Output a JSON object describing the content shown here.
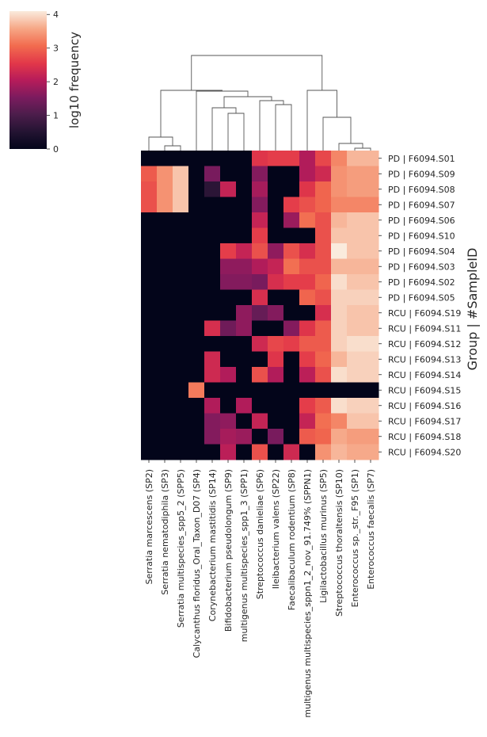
{
  "chart_data": {
    "type": "heatmap",
    "title": "",
    "xlabel": "",
    "ylabel": "Group | #SampleID",
    "colorbar": {
      "label": "log10 frequency",
      "ticks": [
        0,
        1,
        2,
        3,
        4
      ],
      "range": [
        0,
        4.1
      ],
      "colormap": "rocket"
    },
    "columns": [
      "Serratia marcescens (SP2)",
      "Serratia nematodiphila (SP3)",
      "Serratia multispecies_spp5_2 (SPP5)",
      "Calycanthus floridus_Oral_Taxon_D07 (SP4)",
      "Corynebacterium mastitidis (SP14)",
      "Bifidobacterium pseudolongum (SP9)",
      "multigenus multispecies_spp1_3 (SPP1)",
      "Streptococcus danieliae (SP6)",
      "Ileibacterium valens (SP22)",
      "Faecalibaculum rodentium (SP8)",
      "multigenus multispecies_sppn1_2_nov_91.749% (SPPN1)",
      "Ligilactobacillus murinus (SP5)",
      "Streptococcus thoraltensis (SP10)",
      "Enterococcus sp._str._F95 (SP1)",
      "Enterococcus faecalis (SP7)"
    ],
    "rows": [
      "PD | F6094.S01",
      "PD | F6094.S09",
      "PD | F6094.S08",
      "PD | F6094.S07",
      "PD | F6094.S06",
      "PD | F6094.S10",
      "PD | F6094.S04",
      "PD | F6094.S03",
      "PD | F6094.S02",
      "PD | F6094.S05",
      "RCU | F6094.S19",
      "RCU | F6094.S11",
      "RCU | F6094.S12",
      "RCU | F6094.S13",
      "RCU | F6094.S14",
      "RCU | F6094.S15",
      "RCU | F6094.S16",
      "RCU | F6094.S17",
      "RCU | F6094.S18",
      "RCU | F6094.S20"
    ],
    "values": [
      [
        0,
        0,
        0,
        0,
        0,
        0,
        0,
        2.5,
        2.6,
        2.6,
        2.0,
        2.7,
        3.3,
        3.7,
        3.7
      ],
      [
        2.9,
        3.4,
        3.8,
        0,
        1.5,
        0,
        0,
        1.6,
        0,
        0,
        2.0,
        2.3,
        3.4,
        3.5,
        3.5
      ],
      [
        2.8,
        3.4,
        3.8,
        0,
        0.6,
        2.2,
        0,
        1.9,
        0,
        0,
        2.5,
        3.0,
        3.4,
        3.5,
        3.5
      ],
      [
        2.8,
        3.4,
        3.8,
        0,
        0,
        0,
        0,
        1.6,
        0,
        2.6,
        2.8,
        3.0,
        3.3,
        3.3,
        3.3
      ],
      [
        0,
        0,
        0,
        0,
        0,
        0,
        0,
        2.2,
        0,
        1.8,
        3.1,
        2.8,
        3.7,
        3.8,
        3.8
      ],
      [
        0,
        0,
        0,
        0,
        0,
        0,
        0,
        2.6,
        0,
        0,
        0,
        2.8,
        3.8,
        3.8,
        3.8
      ],
      [
        0,
        0,
        0,
        0,
        0,
        2.6,
        2.2,
        2.8,
        1.7,
        2.8,
        2.4,
        2.8,
        4.1,
        3.8,
        3.8
      ],
      [
        0,
        0,
        0,
        0,
        0,
        1.7,
        1.7,
        2.0,
        2.2,
        3.1,
        2.8,
        2.8,
        3.7,
        3.7,
        3.7
      ],
      [
        0,
        0,
        0,
        0,
        0,
        1.6,
        1.6,
        1.5,
        2.4,
        2.6,
        2.6,
        3.0,
        4.0,
        3.8,
        3.8
      ],
      [
        0,
        0,
        0,
        0,
        0,
        0,
        0,
        2.4,
        0,
        0,
        3.0,
        2.8,
        3.9,
        3.9,
        3.9
      ],
      [
        0,
        0,
        0,
        0,
        0,
        0,
        1.7,
        1.3,
        1.6,
        0,
        0,
        2.4,
        3.9,
        3.8,
        3.8
      ],
      [
        0,
        0,
        0,
        0,
        2.4,
        1.4,
        1.7,
        0,
        0,
        1.6,
        2.5,
        2.9,
        3.9,
        3.8,
        3.8
      ],
      [
        0,
        0,
        0,
        0,
        0,
        0,
        0,
        2.3,
        2.7,
        2.6,
        2.9,
        2.9,
        3.9,
        4.0,
        4.0
      ],
      [
        0,
        0,
        0,
        0,
        2.3,
        0,
        0,
        0,
        2.5,
        0,
        2.6,
        3.0,
        3.7,
        3.9,
        3.9
      ],
      [
        0,
        0,
        0,
        0,
        2.3,
        2.0,
        0,
        2.8,
        2.0,
        0,
        2.1,
        2.8,
        4.0,
        3.9,
        3.9
      ],
      [
        0,
        0,
        0,
        3.2,
        0,
        0,
        0,
        0,
        0,
        0,
        0,
        0,
        0,
        0,
        0
      ],
      [
        0,
        0,
        0,
        0,
        2.0,
        0,
        2.0,
        0,
        0,
        0,
        2.6,
        2.9,
        4.0,
        3.9,
        3.9
      ],
      [
        0,
        0,
        0,
        0,
        1.6,
        1.7,
        0,
        2.2,
        0,
        0,
        2.2,
        3.1,
        3.3,
        3.8,
        3.8
      ],
      [
        0,
        0,
        0,
        0,
        1.6,
        1.9,
        1.8,
        0,
        1.5,
        0,
        2.9,
        3.0,
        3.6,
        3.5,
        3.5
      ],
      [
        0,
        0,
        0,
        0,
        0,
        2.1,
        0,
        2.8,
        0,
        2.3,
        0,
        3.4,
        3.7,
        3.6,
        3.6
      ]
    ]
  }
}
